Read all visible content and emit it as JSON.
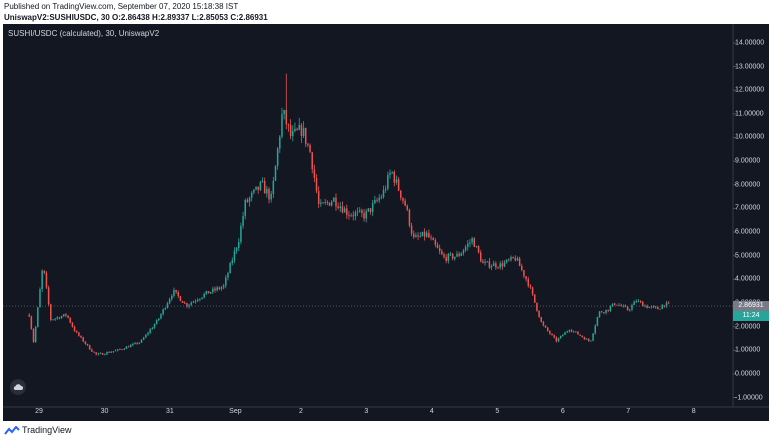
{
  "header": {
    "published": "Published on TradingView.com, September 07, 2020 15:18:38 IST",
    "ohlc": "UniswapV2:SUSHIUSDC, 30  O:2.86438 H:2.89337 L:2.85053 C:2.86931"
  },
  "chart_title": "SUSHI/USDC (calculated), 30, UniswapV2",
  "price_tag": {
    "last": "2.86931",
    "timer": "11:24"
  },
  "footer": {
    "brand": "TradingView"
  },
  "colors": {
    "background": "#131722",
    "up": "#26a69a",
    "down": "#ef5350",
    "text": "#d1d4dc"
  },
  "chart_data": {
    "type": "candlestick",
    "title": "SUSHI/USDC (calculated), 30, UniswapV2",
    "ylim": [
      -1.4,
      14.8
    ],
    "xlim": [
      -0.55,
      10.6
    ],
    "yticks": [
      {
        "value": 14,
        "label": "14.00000"
      },
      {
        "value": 13,
        "label": "13.00000"
      },
      {
        "value": 12,
        "label": "12.00000"
      },
      {
        "value": 11,
        "label": "11.00000"
      },
      {
        "value": 10,
        "label": "10.00000"
      },
      {
        "value": 9,
        "label": "9.00000"
      },
      {
        "value": 8,
        "label": "8.00000"
      },
      {
        "value": 7,
        "label": "7.00000"
      },
      {
        "value": 6,
        "label": "6.00000"
      },
      {
        "value": 5,
        "label": "5.00000"
      },
      {
        "value": 4,
        "label": "4.00000"
      },
      {
        "value": 3,
        "label": "3.00000"
      },
      {
        "value": 2,
        "label": "2.00000"
      },
      {
        "value": 1,
        "label": "1.00000"
      },
      {
        "value": 0,
        "label": "0.00000"
      },
      {
        "value": -1,
        "label": "-1.00000"
      }
    ],
    "xticks": [
      {
        "value": 0,
        "label": "29"
      },
      {
        "value": 1,
        "label": "30"
      },
      {
        "value": 2,
        "label": "31"
      },
      {
        "value": 3,
        "label": "Sep"
      },
      {
        "value": 4,
        "label": "2"
      },
      {
        "value": 5,
        "label": "3"
      },
      {
        "value": 6,
        "label": "4"
      },
      {
        "value": 7,
        "label": "5"
      },
      {
        "value": 8,
        "label": "6"
      },
      {
        "value": 9,
        "label": "7"
      },
      {
        "value": 10,
        "label": "8"
      }
    ],
    "series": [
      [
        -0.15,
        2.5
      ],
      [
        -0.08,
        1.3
      ],
      [
        0.06,
        4.6
      ],
      [
        0.18,
        2.3
      ],
      [
        0.42,
        2.5
      ],
      [
        0.55,
        1.8
      ],
      [
        0.78,
        1.05
      ],
      [
        0.88,
        0.8
      ],
      [
        1.2,
        1.0
      ],
      [
        1.55,
        1.35
      ],
      [
        1.82,
        2.3
      ],
      [
        2.05,
        3.5
      ],
      [
        2.25,
        2.9
      ],
      [
        2.55,
        3.4
      ],
      [
        2.82,
        3.7
      ],
      [
        3.05,
        5.7
      ],
      [
        3.15,
        7.2
      ],
      [
        3.4,
        8.0
      ],
      [
        3.55,
        7.4
      ],
      [
        3.72,
        11.1
      ],
      [
        3.85,
        10.0
      ],
      [
        4.02,
        10.35
      ],
      [
        4.15,
        9.3
      ],
      [
        4.28,
        7.0
      ],
      [
        4.5,
        7.4
      ],
      [
        4.72,
        6.8
      ],
      [
        4.98,
        6.7
      ],
      [
        5.25,
        7.6
      ],
      [
        5.38,
        8.6
      ],
      [
        5.6,
        7.1
      ],
      [
        5.72,
        5.7
      ],
      [
        5.92,
        5.9
      ],
      [
        6.18,
        4.9
      ],
      [
        6.4,
        5.0
      ],
      [
        6.62,
        5.7
      ],
      [
        6.78,
        4.65
      ],
      [
        7.05,
        4.6
      ],
      [
        7.28,
        4.9
      ],
      [
        7.48,
        3.8
      ],
      [
        7.68,
        2.1
      ],
      [
        7.9,
        1.4
      ],
      [
        8.1,
        1.9
      ],
      [
        8.28,
        1.6
      ],
      [
        8.42,
        1.35
      ],
      [
        8.55,
        2.6
      ],
      [
        8.68,
        2.7
      ],
      [
        8.8,
        3.0
      ],
      [
        9.0,
        2.7
      ],
      [
        9.12,
        3.1
      ],
      [
        9.28,
        2.85
      ],
      [
        9.45,
        2.75
      ],
      [
        9.55,
        2.95
      ],
      [
        9.65,
        2.9
      ]
    ]
  }
}
